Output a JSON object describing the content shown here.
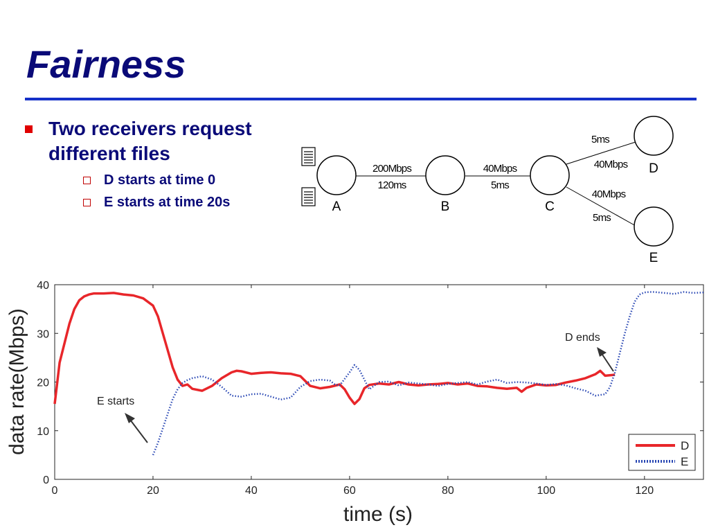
{
  "slide": {
    "title": "Fairness",
    "bullets": [
      {
        "text": "Two receivers request different files",
        "sub": [
          "D starts at time 0",
          "E starts at time 20s"
        ]
      }
    ]
  },
  "diagram": {
    "nodes": [
      "A",
      "B",
      "C",
      "D",
      "E"
    ],
    "links": [
      {
        "from": "A",
        "to": "B",
        "bandwidth": "200Mbps",
        "delay": "120ms"
      },
      {
        "from": "B",
        "to": "C",
        "bandwidth": "40Mbps",
        "delay": "5ms"
      },
      {
        "from": "C",
        "to": "D",
        "bandwidth": "40Mbps",
        "delay": "5ms"
      },
      {
        "from": "C",
        "to": "E",
        "bandwidth": "40Mbps",
        "delay": "5ms"
      }
    ]
  },
  "chart_data": {
    "type": "line",
    "xlabel": "time (s)",
    "ylabel": "data rate(Mbps)",
    "xlim": [
      0,
      132
    ],
    "ylim": [
      0,
      40
    ],
    "xticks": [
      0,
      20,
      40,
      60,
      80,
      100,
      120
    ],
    "yticks": [
      0,
      10,
      20,
      30,
      40
    ],
    "legend_position": "bottom-right",
    "grid": false,
    "series": [
      {
        "name": "D",
        "color": "#e8262a",
        "style": "solid",
        "x": [
          0,
          1,
          2,
          3,
          4,
          5,
          6,
          7,
          8,
          10,
          12,
          14,
          16,
          18,
          20,
          21,
          22,
          23,
          24,
          25,
          26,
          27,
          28,
          30,
          32,
          34,
          36,
          37,
          38,
          40,
          42,
          44,
          46,
          48,
          50,
          52,
          54,
          56,
          58,
          59,
          60,
          61,
          62,
          63,
          64,
          66,
          68,
          70,
          72,
          74,
          76,
          78,
          80,
          82,
          84,
          86,
          88,
          90,
          92,
          94,
          95,
          96,
          98,
          100,
          102,
          104,
          106,
          108,
          110,
          111,
          112,
          114
        ],
        "y": [
          15.5,
          24,
          28,
          32,
          35,
          36.8,
          37.6,
          38,
          38.2,
          38.2,
          38.3,
          38,
          37.8,
          37.2,
          35.7,
          33.5,
          30,
          26.5,
          23,
          20.5,
          19.2,
          19.5,
          18.6,
          18.2,
          19.2,
          20.8,
          22,
          22.3,
          22.2,
          21.7,
          21.9,
          22,
          21.8,
          21.7,
          21.2,
          19.2,
          18.7,
          19,
          19.5,
          18.5,
          16.8,
          15.5,
          16.5,
          18.7,
          19.4,
          19.7,
          19.5,
          20,
          19.5,
          19.3,
          19.5,
          19.6,
          19.8,
          19.5,
          19.7,
          19.2,
          19.1,
          18.8,
          18.6,
          18.8,
          18,
          18.8,
          19.5,
          19.3,
          19.4,
          19.9,
          20.3,
          20.8,
          21.6,
          22.3,
          21.3,
          21.5
        ]
      },
      {
        "name": "E",
        "color": "#2a48b4",
        "style": "dotted",
        "x": [
          20,
          21,
          22,
          23,
          24,
          25,
          26,
          27,
          28,
          30,
          32,
          34,
          36,
          38,
          40,
          42,
          44,
          46,
          48,
          50,
          52,
          54,
          56,
          57,
          58,
          60,
          61,
          62,
          64,
          66,
          68,
          70,
          72,
          74,
          76,
          78,
          80,
          82,
          84,
          86,
          88,
          90,
          92,
          94,
          96,
          98,
          100,
          102,
          104,
          106,
          108,
          110,
          112,
          113,
          114,
          115,
          116,
          117,
          118,
          119,
          120,
          121,
          122,
          124,
          126,
          128,
          130,
          132
        ],
        "y": [
          5,
          7.5,
          10.5,
          13.5,
          16.5,
          18.5,
          19.8,
          20.4,
          20.8,
          21.2,
          20.5,
          19,
          17.2,
          17,
          17.5,
          17.6,
          17,
          16.4,
          16.8,
          19,
          20.2,
          20.5,
          20.3,
          19.5,
          19.3,
          22,
          23.5,
          22.5,
          18.5,
          20,
          20.1,
          19.3,
          19.9,
          19.7,
          19.5,
          19.2,
          19.6,
          19.8,
          20,
          19.5,
          20.1,
          20.5,
          19.8,
          20,
          19.9,
          19.7,
          19.4,
          19.6,
          19.3,
          18.7,
          18.2,
          17.2,
          17.5,
          19,
          22,
          26,
          30,
          33.5,
          36.5,
          38,
          38.4,
          38.5,
          38.5,
          38.3,
          38.1,
          38.5,
          38.3,
          38.4
        ]
      }
    ],
    "annotations": [
      {
        "text": "E starts",
        "x": 20,
        "y": 5
      },
      {
        "text": "D ends",
        "x": 114,
        "y": 21.5
      }
    ]
  }
}
